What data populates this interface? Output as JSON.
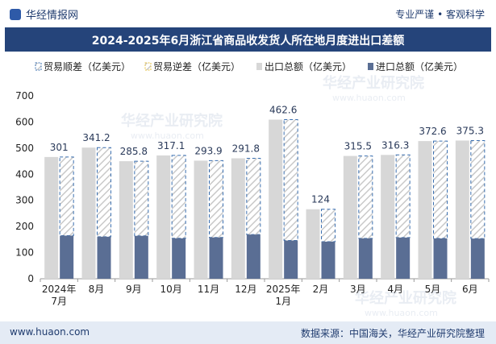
{
  "header": {
    "site_name": "华经情报网",
    "tagline": "专业严谨 • 客观科学"
  },
  "footer": {
    "website": "www.huaon.com",
    "source": "数据来源：中国海关，华经产业研究院整理"
  },
  "watermark": "华经产业研究院",
  "watermark_url": "www.huaon.com",
  "colors": {
    "title_bar": "#25447a",
    "export_bar": "#d7d7d7",
    "import_bar": "#5a6e94",
    "surplus_outline": "#3a6fb0",
    "deficit_outline": "#e6c040",
    "hatch": "#c9c9c9",
    "axis_text": "#222222"
  },
  "chart_data": {
    "type": "bar",
    "title": "2024-2025年6月浙江省商品收发货人所在地月度进出口差额",
    "categories": [
      [
        "2024年",
        "7月"
      ],
      [
        "8月"
      ],
      [
        "9月"
      ],
      [
        "10月"
      ],
      [
        "11月"
      ],
      [
        "12月"
      ],
      [
        "2025年",
        "1月"
      ],
      [
        "2月"
      ],
      [
        "3月"
      ],
      [
        "4月"
      ],
      [
        "5月"
      ],
      [
        "6月"
      ]
    ],
    "legend": [
      "贸易顺差（亿美元）",
      "贸易逆差（亿美元）",
      "出口总额（亿美元）",
      "进口总额（亿美元）"
    ],
    "legend_placement": "top",
    "series": [
      {
        "name": "贸易顺差（亿美元）",
        "values": [
          301,
          341.2,
          285.8,
          317.1,
          293.9,
          291.8,
          462.6,
          124,
          315.5,
          316.3,
          372.6,
          375.3
        ]
      },
      {
        "name": "出口总额（亿美元）",
        "values": [
          466,
          502,
          450,
          472,
          452,
          461,
          609,
          266,
          470,
          474,
          527,
          529
        ]
      },
      {
        "name": "进口总额（亿美元）",
        "values": [
          165,
          160.8,
          164.2,
          154.9,
          158.1,
          169.2,
          146.4,
          142,
          154.5,
          157.7,
          154.4,
          153.7
        ]
      }
    ],
    "data_labels": [
      "301",
      "341.2",
      "285.8",
      "317.1",
      "293.9",
      "291.8",
      "462.6",
      "124",
      "315.5",
      "316.3",
      "372.6",
      "375.3"
    ],
    "y_ticks": [
      "0",
      "100",
      "200",
      "300",
      "400",
      "500",
      "600",
      "700"
    ],
    "ylim": [
      0,
      700
    ],
    "grid": false
  }
}
